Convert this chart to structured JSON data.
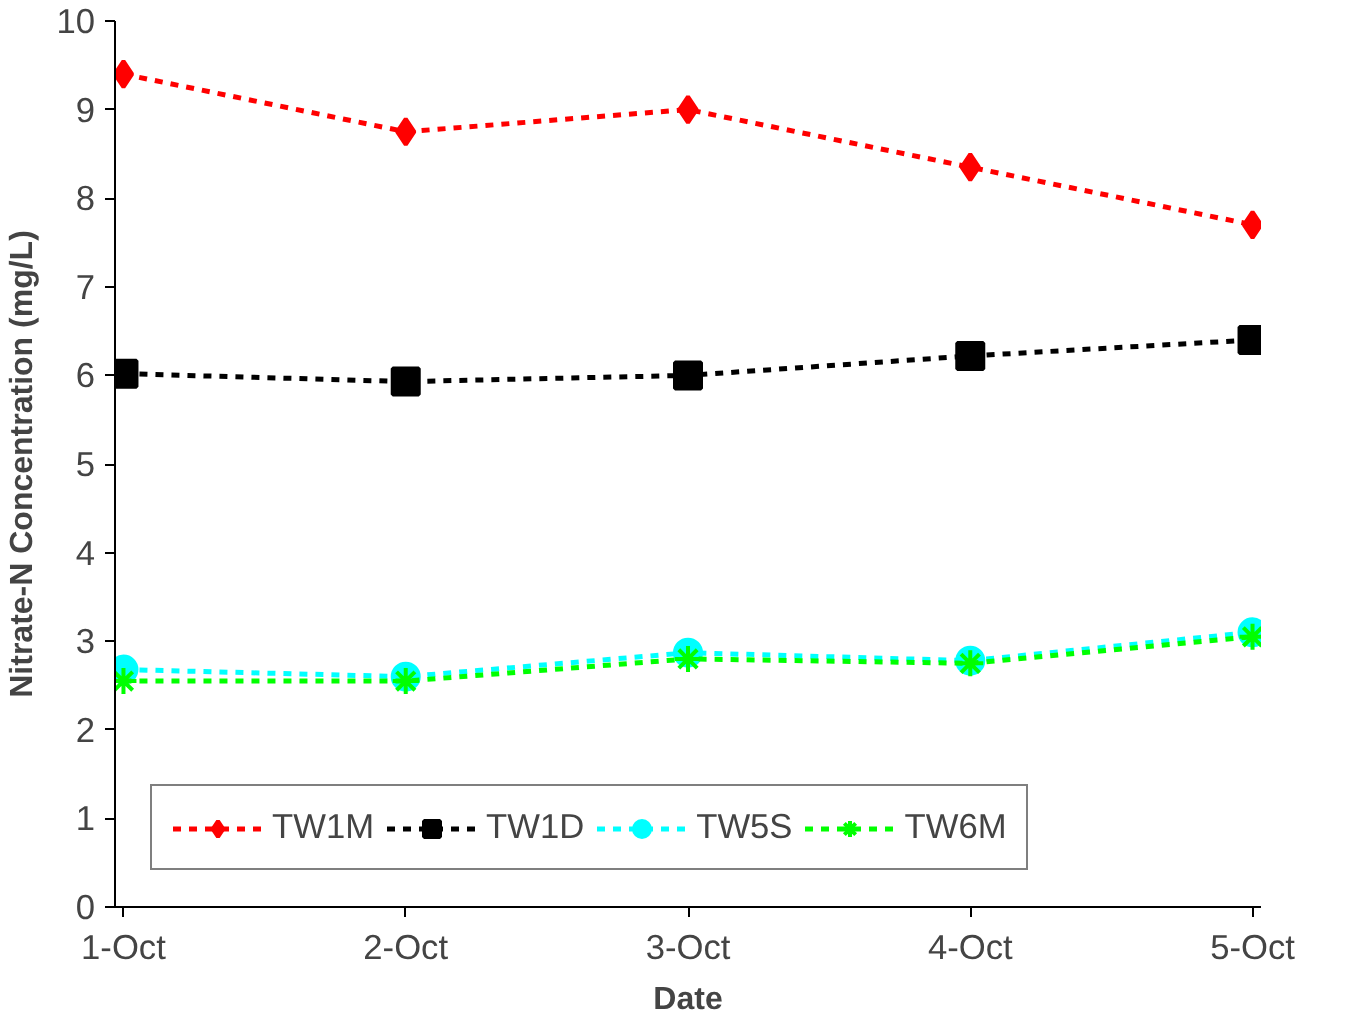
{
  "chart_data": {
    "type": "line",
    "xlabel": "Date",
    "ylabel": "Nitrate-N Concentration (mg/L)",
    "categories": [
      "1-Oct",
      "2-Oct",
      "3-Oct",
      "4-Oct",
      "5-Oct"
    ],
    "ylim": [
      0,
      10
    ],
    "yticks": [
      0,
      1,
      2,
      3,
      4,
      5,
      6,
      7,
      8,
      9,
      10
    ],
    "grid": false,
    "legend": "bottom left",
    "line_style": "dashed",
    "series": [
      {
        "name": "TW1M",
        "color": "#ff0000",
        "marker": "diamond",
        "values": [
          9.4,
          8.75,
          9.0,
          8.35,
          7.7
        ]
      },
      {
        "name": "TW1D",
        "color": "#000000",
        "marker": "square",
        "values": [
          6.02,
          5.93,
          6.0,
          6.22,
          6.4
        ]
      },
      {
        "name": "TW5S",
        "color": "#00ffff",
        "marker": "circle",
        "values": [
          2.68,
          2.6,
          2.87,
          2.78,
          3.1
        ]
      },
      {
        "name": "TW6M",
        "color": "#00ff00",
        "marker": "cross",
        "values": [
          2.55,
          2.55,
          2.8,
          2.75,
          3.05
        ]
      }
    ]
  }
}
